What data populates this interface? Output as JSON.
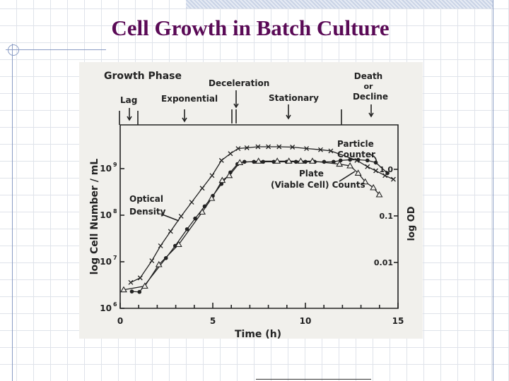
{
  "slide": {
    "title": "Cell Growth in Batch Culture"
  },
  "colors": {
    "title": "#5a0a56",
    "decor": "#8a9cc4",
    "ink": "#222222",
    "paper": "#f1f0ec"
  },
  "chart_data": {
    "type": "scatter",
    "title": "",
    "xlabel": "Time (h)",
    "ylabel": "log Cell Number / mL",
    "y2label": "log OD",
    "xlim": [
      0,
      15
    ],
    "ylim": [
      1000000,
      9000000000
    ],
    "yscale": "log",
    "xticks": [
      "0",
      "5",
      "10",
      "15"
    ],
    "yticks": [
      {
        "base": "10",
        "exp": "6"
      },
      {
        "base": "10",
        "exp": "7"
      },
      {
        "base": "10",
        "exp": "8"
      },
      {
        "base": "10",
        "exp": "9"
      }
    ],
    "y2ticks": [
      "1.0",
      "0.1",
      "0.01"
    ],
    "grid": false,
    "phase_header": "Growth Phase",
    "phases": [
      "Lag",
      "Exponential",
      "Deceleration",
      "Stationary",
      "Death",
      "or",
      "Decline"
    ],
    "annotations": {
      "particle": [
        "Particle",
        "Counter"
      ],
      "plate": [
        "Plate",
        "(Viable Cell) Counts"
      ],
      "od": [
        "Optical",
        "Density"
      ]
    },
    "series": [
      {
        "marker": "x",
        "x": [
          0.57,
          1.08,
          1.71,
          2.18,
          2.72,
          3.29,
          3.86,
          4.43,
          4.96,
          5.47,
          5.95,
          6.37,
          6.84,
          7.44,
          8.0,
          8.58,
          9.3,
          10.06,
          10.82,
          11.37,
          12.78,
          13.35,
          13.8,
          14.3,
          14.75
        ],
        "y": [
          3600000.0,
          4500000.0,
          10500000.0,
          22000000.0,
          45000000.0,
          95000000.0,
          190000000.0,
          380000000.0,
          710000000.0,
          1500000000.0,
          2100000000.0,
          2700000000.0,
          2800000000.0,
          2950000000.0,
          2950000000.0,
          2950000000.0,
          2900000000.0,
          2700000000.0,
          2550000000.0,
          2400000000.0,
          1500000000.0,
          1100000000.0,
          900000000.0,
          710000000.0,
          590000000.0
        ]
      },
      {
        "marker": "filled-circle",
        "x": [
          0.63,
          1.04,
          2.47,
          2.97,
          3.61,
          4.05,
          4.56,
          5.0,
          5.47,
          5.95,
          6.33,
          6.71,
          7.22,
          7.72,
          8.29,
          8.99,
          9.49,
          10.0,
          10.5,
          11.01,
          11.52,
          11.9,
          12.41,
          12.85,
          13.35,
          13.8,
          14.43
        ],
        "y": [
          2300000.0,
          2250000.0,
          12000000.0,
          22000000.0,
          50000000.0,
          85000000.0,
          155000000.0,
          260000000.0,
          470000000.0,
          830000000.0,
          1250000000.0,
          1400000000.0,
          1400000000.0,
          1400000000.0,
          1400000000.0,
          1400000000.0,
          1400000000.0,
          1400000000.0,
          1400000000.0,
          1400000000.0,
          1400000000.0,
          1500000000.0,
          1550000000.0,
          1550000000.0,
          1500000000.0,
          1350000000.0,
          800000000.0
        ]
      },
      {
        "marker": "triangle",
        "x": [
          0.19,
          1.33,
          2.09,
          3.16,
          4.43,
          4.94,
          5.51,
          5.89,
          6.46,
          7.47,
          8.48,
          9.11,
          9.75,
          10.38,
          11.84,
          12.41,
          12.85,
          13.23,
          13.67,
          13.99
        ],
        "y": [
          2500000.0,
          3000000.0,
          8700000.0,
          23500000.0,
          117000000.0,
          230000000.0,
          560000000.0,
          710000000.0,
          1350000000.0,
          1450000000.0,
          1450000000.0,
          1450000000.0,
          1450000000.0,
          1450000000.0,
          1250000000.0,
          1150000000.0,
          800000000.0,
          520000000.0,
          390000000.0,
          275000000.0
        ]
      }
    ]
  }
}
